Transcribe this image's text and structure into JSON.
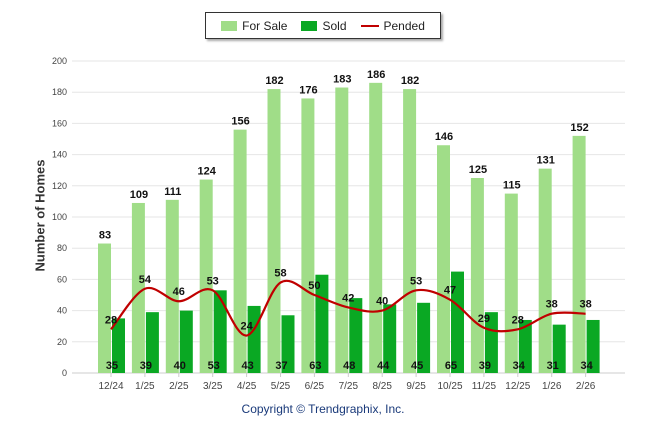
{
  "chart_data": {
    "type": "bar",
    "title": "",
    "xlabel": "",
    "ylabel": "Number of Homes",
    "ylim": [
      0,
      200
    ],
    "yticks": [
      0,
      20,
      40,
      60,
      80,
      100,
      120,
      140,
      160,
      180,
      200
    ],
    "grid": true,
    "legend_position": "top-center",
    "categories": [
      "12/24",
      "1/25",
      "2/25",
      "3/25",
      "4/25",
      "5/25",
      "6/25",
      "7/25",
      "8/25",
      "9/25",
      "10/25",
      "11/25",
      "12/25",
      "1/26",
      "2/26"
    ],
    "series": [
      {
        "name": "For Sale",
        "type": "bar",
        "color": "#a0dd88",
        "values": [
          83,
          109,
          111,
          124,
          156,
          182,
          176,
          183,
          186,
          182,
          146,
          125,
          115,
          131,
          152
        ]
      },
      {
        "name": "Sold",
        "type": "bar",
        "color": "#0aa823",
        "values": [
          35,
          39,
          40,
          53,
          43,
          37,
          63,
          48,
          44,
          45,
          65,
          39,
          34,
          31,
          34
        ]
      },
      {
        "name": "Pended",
        "type": "line",
        "color": "#c00000",
        "values": [
          28,
          54,
          46,
          53,
          24,
          58,
          50,
          42,
          40,
          53,
          47,
          29,
          28,
          38,
          38
        ]
      }
    ]
  },
  "copyright": "Copyright © Trendgraphix, Inc."
}
